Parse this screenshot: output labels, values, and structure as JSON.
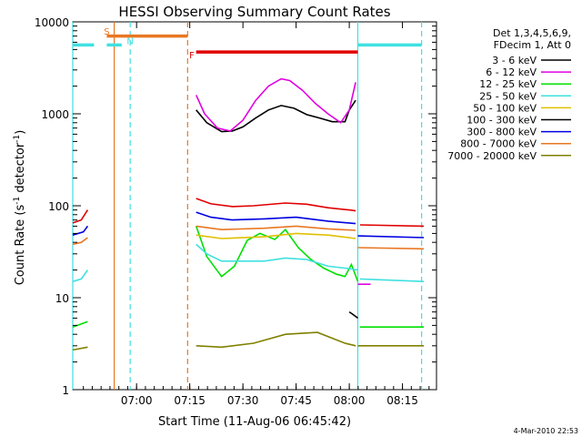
{
  "chart_data": {
    "type": "line",
    "title": "HESSI Observing Summary Count Rates",
    "xlabel": "Start Time (11-Aug-06 06:45:42)",
    "ylabel_main": "Count Rate (s",
    "ylabel_sup1": "-1",
    "ylabel_mid": " detector",
    "ylabel_sup2": "-1",
    "ylabel_end": ")",
    "y_scale": "log",
    "ylim": [
      1,
      10000
    ],
    "xlim_minutes": [
      6.7,
      8.41
    ],
    "x_tick_labels": [
      "07:00",
      "07:15",
      "07:30",
      "07:45",
      "08:00",
      "08:15"
    ],
    "x_tick_values": [
      7.0,
      7.25,
      7.5,
      7.75,
      8.0,
      8.25
    ],
    "y_tick_labels": [
      "1",
      "10",
      "100",
      "1000",
      "10000"
    ],
    "y_tick_values": [
      1,
      10,
      100,
      1000,
      10000
    ],
    "legend_header": [
      "Det 1,3,4,5,6,9,",
      "FDecim 1, Att 0"
    ],
    "footer_date": "4-Mar-2010 22:53",
    "flags": [
      {
        "label": "S",
        "color": "#e87722",
        "start": 6.86,
        "end": 7.24,
        "level": 7000
      },
      {
        "label": "N",
        "color": "#40e0e0",
        "start": 6.7,
        "end": 6.8,
        "level": 5600
      },
      {
        "label": "N",
        "color": "#40e0e0",
        "start": 6.86,
        "end": 6.93,
        "level": 5600
      },
      {
        "label": "F",
        "color": "#e00000",
        "start": 7.28,
        "end": 8.04,
        "level": 4700
      },
      {
        "label": "",
        "color": "#40e0e0",
        "start": 8.04,
        "end": 8.34,
        "level": 5600
      }
    ],
    "flag_labels": [
      {
        "text": "S",
        "color": "#e87722",
        "x": 6.86,
        "y": 7300
      },
      {
        "text": "N",
        "color": "#40e0e0",
        "x": 6.97,
        "y": 5700
      },
      {
        "text": "F",
        "color": "#e00000",
        "x": 7.26,
        "y": 4000
      }
    ],
    "vlines": [
      {
        "x": 6.7,
        "color": "#40e0e0",
        "dash": false
      },
      {
        "x": 6.895,
        "color": "#e87722",
        "dash": false
      },
      {
        "x": 6.97,
        "color": "#40e0e0",
        "dash": true
      },
      {
        "x": 7.24,
        "color": "#e87722",
        "dash": true
      },
      {
        "x": 8.04,
        "color": "#40e0e0",
        "dash": false
      },
      {
        "x": 8.34,
        "color": "#40e0e0",
        "dash": true
      }
    ],
    "series": [
      {
        "name": "3 - 6 keV",
        "color": "#000000",
        "segments": [
          [
            [
              7.28,
              1100
            ],
            [
              7.33,
              800
            ],
            [
              7.4,
              640
            ],
            [
              7.45,
              650
            ],
            [
              7.5,
              720
            ],
            [
              7.56,
              900
            ],
            [
              7.62,
              1100
            ],
            [
              7.68,
              1230
            ],
            [
              7.74,
              1150
            ],
            [
              7.8,
              980
            ],
            [
              7.86,
              900
            ],
            [
              7.92,
              820
            ],
            [
              7.98,
              820
            ],
            [
              8.0,
              1100
            ],
            [
              8.03,
              1400
            ]
          ]
        ]
      },
      {
        "name": "6 - 12 keV",
        "color": "#e000e0",
        "segments": [
          [
            [
              7.28,
              1600
            ],
            [
              7.32,
              1000
            ],
            [
              7.38,
              700
            ],
            [
              7.44,
              650
            ],
            [
              7.5,
              850
            ],
            [
              7.56,
              1400
            ],
            [
              7.62,
              2000
            ],
            [
              7.68,
              2400
            ],
            [
              7.72,
              2300
            ],
            [
              7.78,
              1800
            ],
            [
              7.84,
              1300
            ],
            [
              7.9,
              1000
            ],
            [
              7.96,
              800
            ],
            [
              8.0,
              1100
            ],
            [
              8.03,
              2200
            ]
          ],
          [
            [
              8.04,
              14
            ],
            [
              8.1,
              14
            ]
          ]
        ]
      },
      {
        "name": "12 - 25 keV",
        "color": "#00e000",
        "segments": [
          [
            [
              6.7,
              4.8
            ],
            [
              6.77,
              5.5
            ]
          ],
          [
            [
              7.28,
              60
            ],
            [
              7.33,
              28
            ],
            [
              7.4,
              17
            ],
            [
              7.46,
              22
            ],
            [
              7.52,
              42
            ],
            [
              7.58,
              50
            ],
            [
              7.65,
              43
            ],
            [
              7.7,
              55
            ],
            [
              7.76,
              35
            ],
            [
              7.82,
              26
            ],
            [
              7.88,
              21
            ],
            [
              7.94,
              18
            ],
            [
              7.98,
              17
            ],
            [
              8.01,
              23
            ],
            [
              8.04,
              15
            ]
          ],
          [
            [
              8.05,
              4.8
            ],
            [
              8.35,
              4.8
            ]
          ]
        ]
      },
      {
        "name": "25 - 50 keV",
        "color": "#40e0e0",
        "segments": [
          [
            [
              6.7,
              15
            ],
            [
              6.74,
              16
            ],
            [
              6.77,
              20
            ]
          ],
          [
            [
              7.28,
              38
            ],
            [
              7.33,
              30
            ],
            [
              7.4,
              25
            ],
            [
              7.5,
              25
            ],
            [
              7.6,
              25
            ],
            [
              7.7,
              27
            ],
            [
              7.8,
              26
            ],
            [
              7.9,
              22
            ],
            [
              7.98,
              21
            ],
            [
              8.04,
              20
            ]
          ],
          [
            [
              8.05,
              16
            ],
            [
              8.35,
              15
            ]
          ]
        ]
      },
      {
        "name": "50 - 100 keV",
        "color": "#e0c000",
        "segments": [
          [
            [
              7.28,
              48
            ],
            [
              7.4,
              44
            ],
            [
              7.6,
              46
            ],
            [
              7.75,
              50
            ],
            [
              7.9,
              48
            ],
            [
              8.03,
              44
            ]
          ]
        ]
      },
      {
        "name": "100 - 300 keV",
        "color": "#000000",
        "segments": [
          [
            [
              8.0,
              7
            ],
            [
              8.02,
              6.5
            ],
            [
              8.04,
              6
            ]
          ]
        ]
      },
      {
        "name": "300 - 800 keV",
        "color": "#0000e0",
        "segments": [
          [
            [
              6.7,
              48
            ],
            [
              6.75,
              52
            ],
            [
              6.77,
              60
            ]
          ],
          [
            [
              7.28,
              85
            ],
            [
              7.35,
              75
            ],
            [
              7.45,
              70
            ],
            [
              7.6,
              72
            ],
            [
              7.75,
              75
            ],
            [
              7.9,
              68
            ],
            [
              8.03,
              64
            ]
          ],
          [
            [
              8.04,
              47
            ],
            [
              8.35,
              45
            ]
          ]
        ]
      },
      {
        "name": "800 - 7000 keV",
        "color": "#e87722",
        "segments": [
          [
            [
              6.7,
              38
            ],
            [
              6.74,
              40
            ],
            [
              6.77,
              45
            ]
          ],
          [
            [
              7.28,
              60
            ],
            [
              7.4,
              55
            ],
            [
              7.6,
              57
            ],
            [
              7.75,
              60
            ],
            [
              7.9,
              56
            ],
            [
              8.03,
              54
            ]
          ],
          [
            [
              8.04,
              35
            ],
            [
              8.35,
              34
            ]
          ]
        ]
      },
      {
        "name": "7000 - 20000 keV",
        "color": "#808000",
        "segments": [
          [
            [
              6.7,
              2.7
            ],
            [
              6.77,
              2.9
            ]
          ],
          [
            [
              7.28,
              3.0
            ],
            [
              7.4,
              2.9
            ],
            [
              7.55,
              3.2
            ],
            [
              7.7,
              4.0
            ],
            [
              7.85,
              4.2
            ],
            [
              7.98,
              3.2
            ],
            [
              8.03,
              3.0
            ]
          ],
          [
            [
              8.04,
              3.0
            ],
            [
              8.35,
              3.0
            ]
          ]
        ]
      },
      {
        "name": "",
        "color": "#e00000",
        "segments": [
          [
            [
              6.7,
              65
            ],
            [
              6.74,
              70
            ],
            [
              6.77,
              90
            ]
          ],
          [
            [
              7.28,
              120
            ],
            [
              7.35,
              105
            ],
            [
              7.45,
              98
            ],
            [
              7.55,
              100
            ],
            [
              7.7,
              107
            ],
            [
              7.8,
              104
            ],
            [
              7.9,
              95
            ],
            [
              8.0,
              90
            ],
            [
              8.03,
              88
            ]
          ],
          [
            [
              8.05,
              62
            ],
            [
              8.35,
              60
            ]
          ]
        ]
      }
    ]
  }
}
